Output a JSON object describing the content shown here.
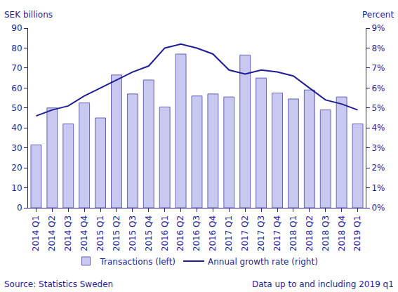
{
  "chart_data": {
    "type": "bar",
    "ylabel": "SEK billions",
    "y2label": "Percent",
    "annotations": [
      "Source: Statistics Sweden",
      "Data up to and including 2019 q1"
    ],
    "categories": [
      "2014 Q1",
      "2014 Q2",
      "2014 Q3",
      "2014 Q4",
      "2015 Q1",
      "2015 Q2",
      "2015 Q3",
      "2015 Q4",
      "2016 Q1",
      "2016 Q2",
      "2016 Q3",
      "2016 Q4",
      "2017 Q1",
      "2017 Q2",
      "2017 Q3",
      "2017 Q4",
      "2018 Q1",
      "2018 Q2",
      "2018 Q3",
      "2018 Q4",
      "2019 Q1"
    ],
    "series": [
      {
        "name": "Transactions (left)",
        "type": "bar",
        "color": "#c8c8f0",
        "values": [
          31.5,
          50,
          42,
          52.5,
          45,
          66.5,
          57,
          64,
          50.5,
          77,
          56,
          57,
          55.5,
          76.5,
          65,
          57.5,
          54.5,
          59,
          49,
          55.5,
          42
        ]
      },
      {
        "name": "Annual growth rate (right)",
        "type": "line",
        "axis": "y2",
        "color": "#1e1e96",
        "values": [
          4.6,
          4.9,
          5.1,
          5.6,
          6.0,
          6.4,
          6.8,
          7.1,
          8.0,
          8.2,
          8.0,
          7.7,
          6.9,
          6.7,
          6.9,
          6.8,
          6.6,
          6.0,
          5.4,
          5.2,
          4.9
        ]
      }
    ],
    "ylim": [
      0,
      90
    ],
    "yticks": [
      0,
      10,
      20,
      30,
      40,
      50,
      60,
      70,
      80,
      90
    ],
    "y2lim": [
      0,
      9
    ],
    "y2ticks": [
      {
        "value": 0,
        "label": "0%"
      },
      {
        "value": 1,
        "label": "1%"
      },
      {
        "value": 2,
        "label": "2%"
      },
      {
        "value": 3,
        "label": "3%"
      },
      {
        "value": 4,
        "label": "4%"
      },
      {
        "value": 5,
        "label": "5%"
      },
      {
        "value": 6,
        "label": "6%"
      },
      {
        "value": 7,
        "label": "7%"
      },
      {
        "value": 8,
        "label": "8%"
      },
      {
        "value": 9,
        "label": "9%"
      }
    ],
    "grid": false,
    "legend": "bottom"
  }
}
